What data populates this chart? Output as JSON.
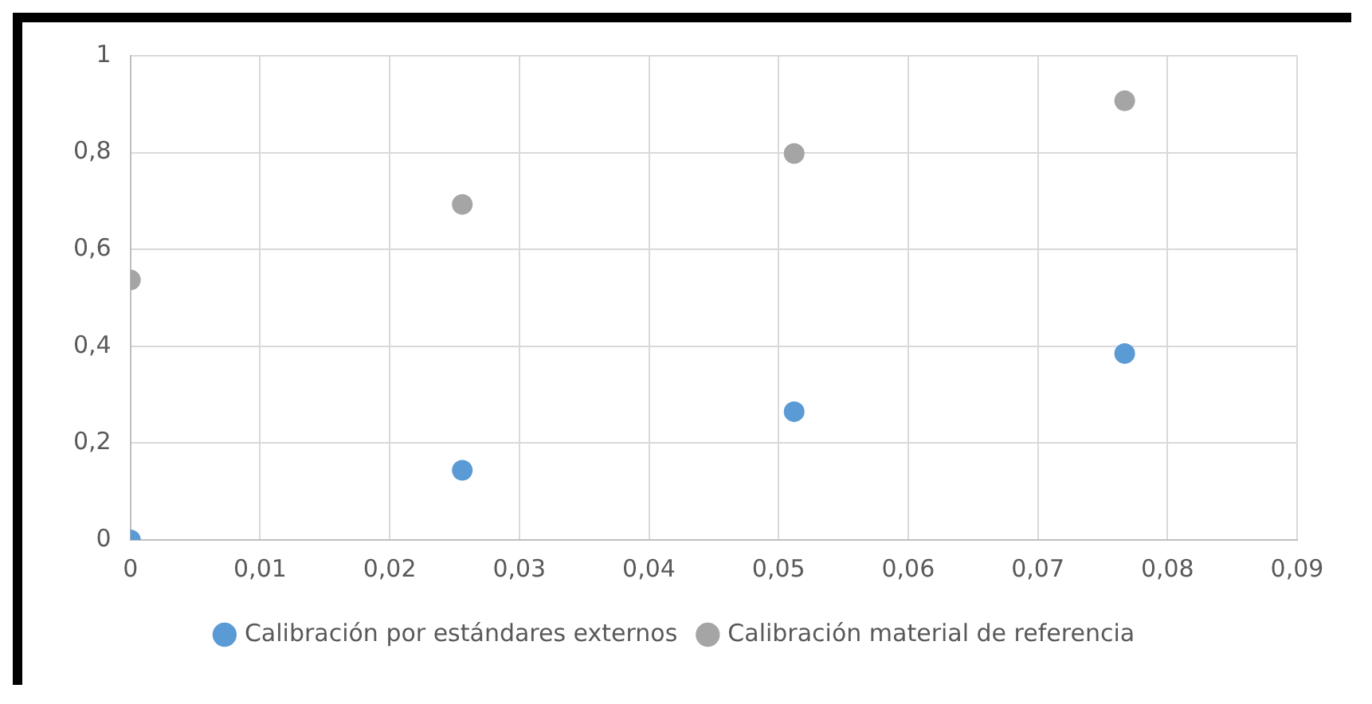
{
  "chart_data": {
    "type": "scatter",
    "legend": "bottom",
    "grid": true,
    "marker": "circle",
    "xlim": [
      0,
      0.09
    ],
    "xticks": [
      0,
      {
        "value": 0.01,
        "label": "0,01"
      },
      {
        "value": 0.02,
        "label": "0,02"
      },
      {
        "value": 0.03,
        "label": "0,03"
      },
      {
        "value": 0.04,
        "label": "0,04"
      },
      {
        "value": 0.05,
        "label": "0,05"
      },
      {
        "value": 0.06,
        "label": "0,06"
      },
      {
        "value": 0.07,
        "label": "0,07"
      },
      {
        "value": 0.08,
        "label": "0,08"
      },
      {
        "value": 0.09,
        "label": "0,09"
      }
    ],
    "ylim": [
      0,
      1
    ],
    "yticks": [
      0,
      {
        "value": 0.2,
        "label": "0,2"
      },
      {
        "value": 0.4,
        "label": "0,4"
      },
      {
        "value": 0.6,
        "label": "0,6"
      },
      {
        "value": 0.8,
        "label": "0,8"
      },
      1
    ],
    "x": [
      0,
      0.0256,
      0.0512,
      0.0767
    ],
    "series": [
      {
        "name": "Calibración por estándares externos",
        "color": "#5b9bd5",
        "values": [
          0,
          0.144,
          0.265,
          0.385
        ]
      },
      {
        "name": "Calibración material de referencia",
        "color": "#a5a5a5",
        "values": [
          0.537,
          0.693,
          0.798,
          0.907
        ]
      }
    ]
  }
}
